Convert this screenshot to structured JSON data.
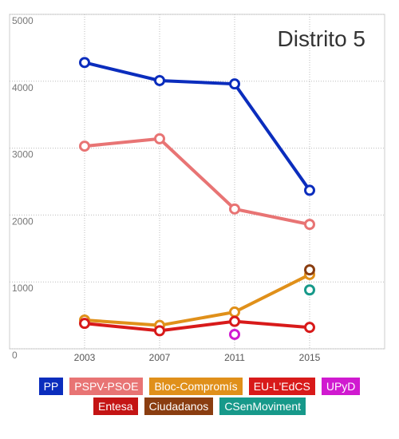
{
  "chart_data": {
    "type": "line",
    "title": "Distrito 5",
    "x": [
      2003,
      2007,
      2011,
      2015
    ],
    "xlim": [
      1999,
      2019
    ],
    "xticks": [
      2003,
      2007,
      2011,
      2015
    ],
    "ylim": [
      0,
      5000
    ],
    "yticks": [
      0,
      1000,
      2000,
      3000,
      4000,
      5000
    ],
    "grid": true,
    "series": [
      {
        "name": "PP",
        "color": "#0b2dbd",
        "values": [
          4280,
          4010,
          3960,
          2370
        ]
      },
      {
        "name": "PSPV-PSOE",
        "color": "#e87474",
        "values": [
          3030,
          3140,
          2090,
          1860
        ]
      },
      {
        "name": "Bloc-Compromís",
        "color": "#e0901a",
        "values": [
          430,
          350,
          550,
          1110
        ]
      },
      {
        "name": "EU-L'EdCS",
        "color": "#d81a1a",
        "values": [
          380,
          270,
          410,
          320
        ]
      },
      {
        "name": "UPyD",
        "color": "#d01ad0",
        "values": [
          null,
          null,
          215,
          null
        ]
      },
      {
        "name": "Entesa",
        "color": "#c41414",
        "values": [
          null,
          null,
          null,
          null
        ]
      },
      {
        "name": "Ciudadanos",
        "color": "#8a3d10",
        "values": [
          null,
          null,
          null,
          1180
        ]
      },
      {
        "name": "CSenMoviment",
        "color": "#17998a",
        "values": [
          null,
          null,
          null,
          880
        ]
      }
    ]
  }
}
